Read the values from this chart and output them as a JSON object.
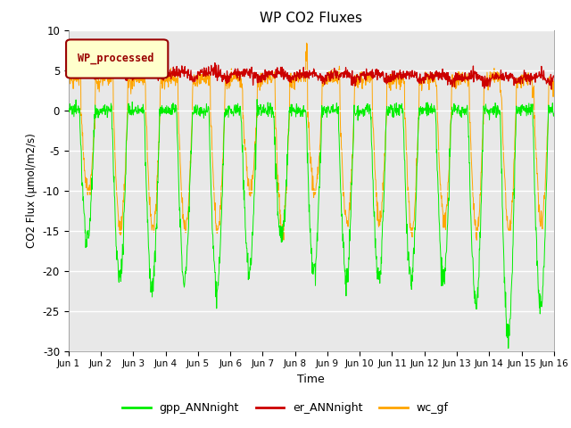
{
  "title": "WP CO2 Fluxes",
  "xlabel": "Time",
  "ylabel": "CO2 Flux (μmol/m2/s)",
  "ylim": [
    -30,
    10
  ],
  "xlim": [
    0,
    15
  ],
  "xtick_labels": [
    "Jun 1",
    "Jun 2",
    "Jun 3",
    "Jun 4",
    "Jun 5",
    "Jun 6",
    "Jun 7",
    "Jun 8",
    "Jun 9",
    "Jun 10",
    "Jun 11",
    "Jun 12",
    "Jun 13",
    "Jun 14",
    "Jun 15",
    "Jun 16"
  ],
  "xtick_positions": [
    0,
    1,
    2,
    3,
    4,
    5,
    6,
    7,
    8,
    9,
    10,
    11,
    12,
    13,
    14,
    15
  ],
  "color_gpp": "#00EE00",
  "color_er": "#CC0000",
  "color_wc": "#FFA500",
  "legend_label": "WP_processed",
  "legend_facecolor": "#FFFFCC",
  "legend_edgecolor": "#990000",
  "background_color": "#E8E8E8",
  "n_days": 15,
  "points_per_day": 96,
  "gpp_day_min": [
    -16,
    -21,
    -22,
    -21,
    -22,
    -20,
    -16,
    -20,
    -21,
    -21,
    -21,
    -21,
    -24,
    -28,
    -24
  ],
  "er_amplitude": 0.6,
  "er_base": 4.5,
  "wc_day_min": [
    -10,
    -15,
    -15,
    -15,
    -15,
    -10,
    -15,
    -10,
    -14,
    -14,
    -15,
    -14,
    -15,
    -15,
    -14
  ],
  "wc_peak": [
    5.5,
    5.5,
    3.5,
    3.5,
    4.0,
    3.0,
    4.0,
    7.5,
    5.0,
    4.5,
    3.5,
    3.0,
    3.0,
    2.5,
    2.5
  ]
}
